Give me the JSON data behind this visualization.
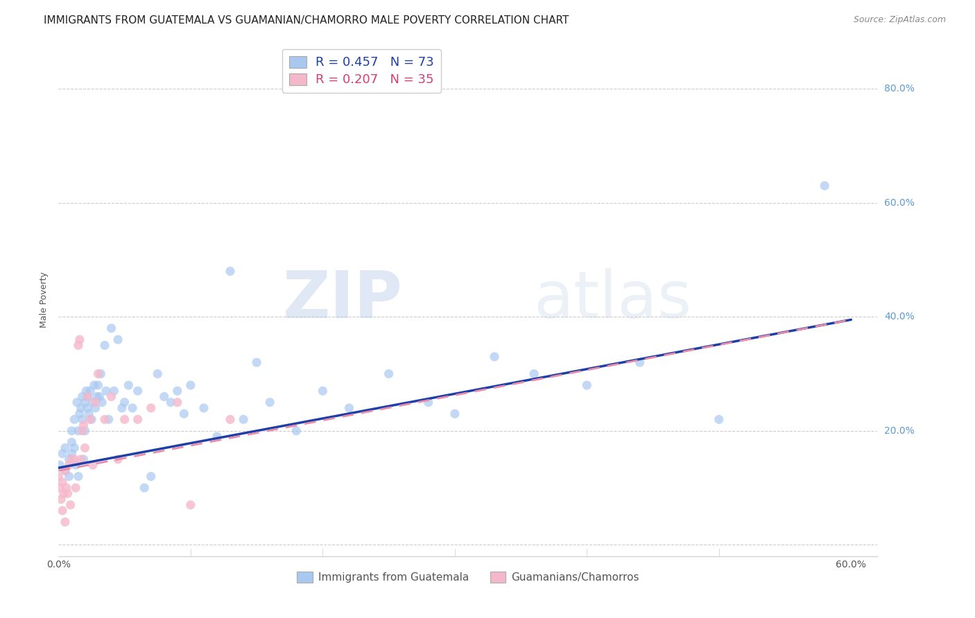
{
  "title": "IMMIGRANTS FROM GUATEMALA VS GUAMANIAN/CHAMORRO MALE POVERTY CORRELATION CHART",
  "source": "Source: ZipAtlas.com",
  "ylabel": "Male Poverty",
  "xlim": [
    0.0,
    0.62
  ],
  "ylim": [
    -0.02,
    0.88
  ],
  "xticks": [
    0.0,
    0.1,
    0.2,
    0.3,
    0.4,
    0.5,
    0.6
  ],
  "yticks": [
    0.0,
    0.2,
    0.4,
    0.6,
    0.8
  ],
  "xtick_labels_show": [
    "0.0%",
    "60.0%"
  ],
  "xtick_labels_show_pos": [
    0.0,
    0.6
  ],
  "ytick_labels": [
    "",
    "20.0%",
    "40.0%",
    "60.0%",
    "80.0%"
  ],
  "blue_color": "#a8c8f0",
  "pink_color": "#f5b8cb",
  "blue_line_color": "#1f3fa8",
  "pink_line_color": "#e88ca8",
  "R_blue": 0.457,
  "N_blue": 73,
  "R_pink": 0.207,
  "N_pink": 35,
  "legend_label_blue": "Immigrants from Guatemala",
  "legend_label_pink": "Guamanians/Chamorros",
  "watermark_zip": "ZIP",
  "watermark_atlas": "atlas",
  "blue_scatter_x": [
    0.001,
    0.003,
    0.005,
    0.005,
    0.008,
    0.008,
    0.01,
    0.01,
    0.01,
    0.012,
    0.012,
    0.013,
    0.014,
    0.015,
    0.015,
    0.016,
    0.017,
    0.018,
    0.018,
    0.019,
    0.02,
    0.02,
    0.021,
    0.022,
    0.022,
    0.023,
    0.024,
    0.025,
    0.026,
    0.027,
    0.028,
    0.029,
    0.03,
    0.031,
    0.032,
    0.033,
    0.035,
    0.036,
    0.038,
    0.04,
    0.042,
    0.045,
    0.048,
    0.05,
    0.053,
    0.056,
    0.06,
    0.065,
    0.07,
    0.075,
    0.08,
    0.085,
    0.09,
    0.095,
    0.1,
    0.11,
    0.12,
    0.13,
    0.14,
    0.15,
    0.16,
    0.18,
    0.2,
    0.22,
    0.25,
    0.28,
    0.3,
    0.33,
    0.36,
    0.4,
    0.44,
    0.5,
    0.58
  ],
  "blue_scatter_y": [
    0.14,
    0.16,
    0.13,
    0.17,
    0.15,
    0.12,
    0.16,
    0.18,
    0.2,
    0.17,
    0.22,
    0.14,
    0.25,
    0.2,
    0.12,
    0.23,
    0.24,
    0.22,
    0.26,
    0.15,
    0.25,
    0.2,
    0.27,
    0.24,
    0.26,
    0.23,
    0.27,
    0.22,
    0.25,
    0.28,
    0.24,
    0.26,
    0.28,
    0.26,
    0.3,
    0.25,
    0.35,
    0.27,
    0.22,
    0.38,
    0.27,
    0.36,
    0.24,
    0.25,
    0.28,
    0.24,
    0.27,
    0.1,
    0.12,
    0.3,
    0.26,
    0.25,
    0.27,
    0.23,
    0.28,
    0.24,
    0.19,
    0.48,
    0.22,
    0.32,
    0.25,
    0.2,
    0.27,
    0.24,
    0.3,
    0.25,
    0.23,
    0.33,
    0.3,
    0.28,
    0.32,
    0.22,
    0.63
  ],
  "pink_scatter_x": [
    0.0,
    0.001,
    0.002,
    0.003,
    0.003,
    0.004,
    0.005,
    0.005,
    0.006,
    0.007,
    0.008,
    0.009,
    0.01,
    0.012,
    0.013,
    0.015,
    0.016,
    0.017,
    0.018,
    0.019,
    0.02,
    0.022,
    0.024,
    0.026,
    0.028,
    0.03,
    0.035,
    0.04,
    0.045,
    0.05,
    0.06,
    0.07,
    0.09,
    0.1,
    0.13
  ],
  "pink_scatter_y": [
    0.12,
    0.1,
    0.08,
    0.06,
    0.11,
    0.09,
    0.04,
    0.13,
    0.1,
    0.09,
    0.14,
    0.07,
    0.15,
    0.15,
    0.1,
    0.35,
    0.36,
    0.15,
    0.2,
    0.21,
    0.17,
    0.26,
    0.22,
    0.14,
    0.25,
    0.3,
    0.22,
    0.26,
    0.15,
    0.22,
    0.22,
    0.24,
    0.25,
    0.07,
    0.22
  ],
  "title_fontsize": 11,
  "axis_label_fontsize": 9,
  "tick_fontsize": 10,
  "right_ytick_color": "#5b9bd5"
}
